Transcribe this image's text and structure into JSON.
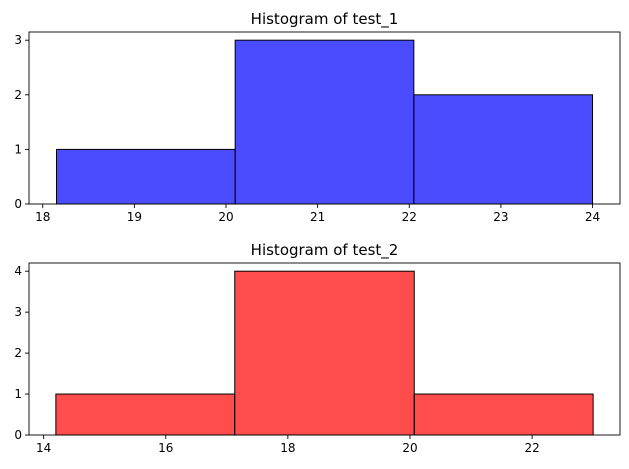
{
  "chart_data": [
    {
      "type": "bar",
      "title": "Histogram of test_1",
      "xlabel": "",
      "ylabel": "",
      "color": "#0000ff",
      "opacity": 0.7,
      "bins": [
        {
          "x0": 18.15,
          "x1": 20.1,
          "value": 1
        },
        {
          "x0": 20.1,
          "x1": 22.05,
          "value": 3
        },
        {
          "x0": 22.05,
          "x1": 24.0,
          "value": 2
        }
      ],
      "xlim": [
        17.85,
        24.3
      ],
      "ylim": [
        0,
        3.15
      ],
      "xticks": [
        "18",
        "19",
        "20",
        "21",
        "22",
        "23",
        "24"
      ],
      "yticks": [
        "0",
        "1",
        "2",
        "3"
      ],
      "grid": false
    },
    {
      "type": "bar",
      "title": "Histogram of test_2",
      "xlabel": "",
      "ylabel": "",
      "color": "#ff0000",
      "opacity": 0.7,
      "bins": [
        {
          "x0": 14.2,
          "x1": 17.13,
          "value": 1
        },
        {
          "x0": 17.13,
          "x1": 20.07,
          "value": 4
        },
        {
          "x0": 20.07,
          "x1": 23.0,
          "value": 1
        }
      ],
      "xlim": [
        13.76,
        23.44
      ],
      "ylim": [
        0,
        4.2
      ],
      "xticks": [
        "14",
        "16",
        "18",
        "20",
        "22"
      ],
      "yticks": [
        "0",
        "1",
        "2",
        "3",
        "4"
      ],
      "grid": false
    }
  ]
}
